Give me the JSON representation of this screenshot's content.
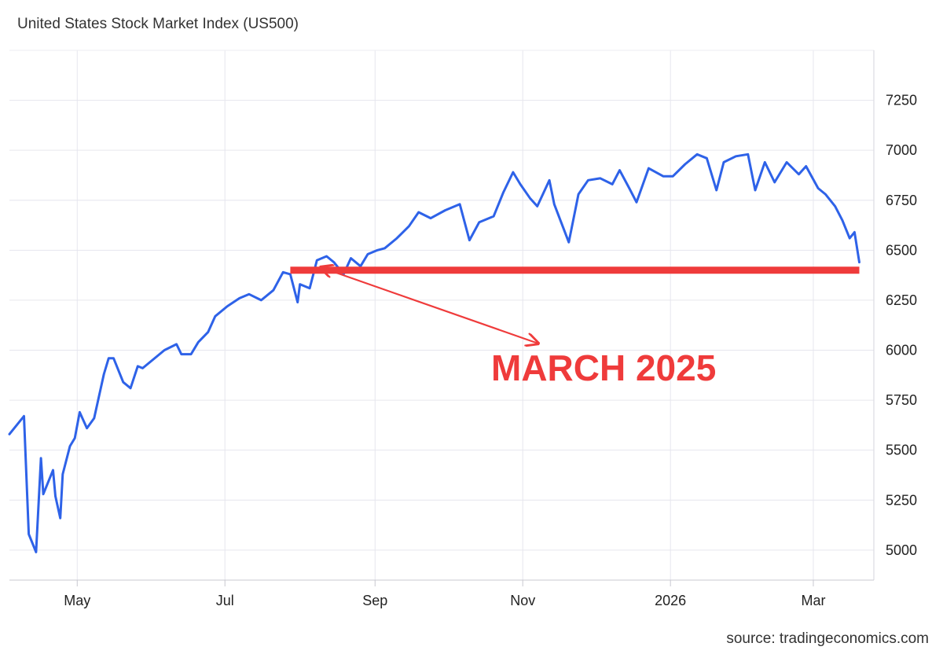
{
  "title": "United States Stock Market Index (US500)",
  "source": "source: tradingeconomics.com",
  "chart_data": {
    "type": "line",
    "title": "United States Stock Market Index (US500)",
    "xlabel": "",
    "ylabel": "",
    "x_ticks": [
      "May",
      "Jul",
      "Sep",
      "Nov",
      "2026",
      "Mar"
    ],
    "x_tick_dates": [
      "2025-05-01",
      "2025-07-01",
      "2025-09-01",
      "2025-11-01",
      "2026-01-01",
      "2026-03-01"
    ],
    "y_ticks": [
      5000,
      5250,
      5500,
      5750,
      6000,
      6250,
      6500,
      6750,
      7000,
      7250
    ],
    "xlim": [
      "2025-04-03",
      "2026-03-26"
    ],
    "ylim": [
      4850,
      7500
    ],
    "grid": true,
    "y_axis_position": "right",
    "line_color": "#2e62e8",
    "series": [
      {
        "x": [
          "2025-04-03",
          "2025-04-07",
          "2025-04-09",
          "2025-04-11",
          "2025-04-14",
          "2025-04-16",
          "2025-04-17",
          "2025-04-21",
          "2025-04-22",
          "2025-04-24",
          "2025-04-25",
          "2025-04-28",
          "2025-04-30",
          "2025-05-02",
          "2025-05-05",
          "2025-05-08",
          "2025-05-12",
          "2025-05-14",
          "2025-05-16",
          "2025-05-20",
          "2025-05-23",
          "2025-05-26",
          "2025-05-28",
          "2025-06-03",
          "2025-06-06",
          "2025-06-11",
          "2025-06-13",
          "2025-06-17",
          "2025-06-20",
          "2025-06-24",
          "2025-06-27",
          "2025-07-02",
          "2025-07-07",
          "2025-07-11",
          "2025-07-16",
          "2025-07-21",
          "2025-07-25",
          "2025-07-28",
          "2025-07-31",
          "2025-08-01",
          "2025-08-05",
          "2025-08-08",
          "2025-08-12",
          "2025-08-15",
          "2025-08-19",
          "2025-08-22",
          "2025-08-26",
          "2025-08-29",
          "2025-09-02",
          "2025-09-05",
          "2025-09-10",
          "2025-09-15",
          "2025-09-19",
          "2025-09-24",
          "2025-09-30",
          "2025-10-06",
          "2025-10-10",
          "2025-10-14",
          "2025-10-20",
          "2025-10-24",
          "2025-10-28",
          "2025-10-31",
          "2025-11-04",
          "2025-11-07",
          "2025-11-12",
          "2025-11-14",
          "2025-11-20",
          "2025-11-24",
          "2025-11-28",
          "2025-12-03",
          "2025-12-08",
          "2025-12-11",
          "2025-12-15",
          "2025-12-18",
          "2025-12-23",
          "2025-12-29",
          "2026-01-02",
          "2026-01-07",
          "2026-01-12",
          "2026-01-16",
          "2026-01-20",
          "2026-01-23",
          "2026-01-28",
          "2026-02-02",
          "2026-02-05",
          "2026-02-09",
          "2026-02-13",
          "2026-02-18",
          "2026-02-23",
          "2026-02-26",
          "2026-03-03",
          "2026-03-06",
          "2026-03-10",
          "2026-03-13",
          "2026-03-16",
          "2026-03-18",
          "2026-03-20"
        ],
        "y": [
          5580,
          5640,
          5670,
          5080,
          4990,
          5460,
          5280,
          5400,
          5270,
          5160,
          5380,
          5520,
          5560,
          5690,
          5610,
          5660,
          5880,
          5960,
          5960,
          5840,
          5810,
          5920,
          5910,
          5970,
          6000,
          6030,
          5980,
          5980,
          6040,
          6090,
          6170,
          6220,
          6260,
          6280,
          6250,
          6300,
          6390,
          6380,
          6240,
          6330,
          6310,
          6450,
          6470,
          6440,
          6380,
          6460,
          6420,
          6480,
          6500,
          6510,
          6560,
          6620,
          6690,
          6660,
          6700,
          6730,
          6550,
          6640,
          6670,
          6790,
          6890,
          6830,
          6760,
          6720,
          6850,
          6730,
          6540,
          6780,
          6850,
          6860,
          6830,
          6900,
          6810,
          6740,
          6910,
          6870,
          6870,
          6930,
          6980,
          6960,
          6800,
          6940,
          6970,
          6980,
          6800,
          6940,
          6840,
          6940,
          6880,
          6920,
          6810,
          6780,
          6720,
          6650,
          6560,
          6590,
          6440
        ]
      }
    ],
    "annotations": [
      {
        "text": "MARCH 2025",
        "color": "#ef3b3b"
      }
    ],
    "reference_line": {
      "y": 6400,
      "x_start": "2025-07-28",
      "x_end": "2026-03-20",
      "color": "#ef3b3b"
    }
  }
}
